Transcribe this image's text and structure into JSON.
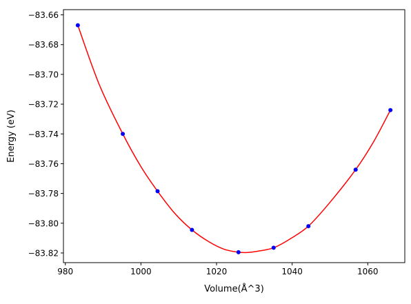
{
  "chart_data": {
    "type": "scatter",
    "title": "",
    "xlabel": "Volume(Å^3)",
    "ylabel": "Energy (eV)",
    "xlim": [
      979.5,
      1069.8
    ],
    "ylim": [
      -83.8265,
      -83.6565
    ],
    "x_ticks": [
      980,
      1000,
      1020,
      1040,
      1060
    ],
    "y_ticks": [
      -83.66,
      -83.68,
      -83.7,
      -83.72,
      -83.74,
      -83.76,
      -83.78,
      -83.8,
      -83.82
    ],
    "x_tick_labels": [
      "980",
      "1000",
      "1020",
      "1040",
      "1060"
    ],
    "y_tick_labels": [
      "−83.66",
      "−83.68",
      "−83.70",
      "−83.72",
      "−83.74",
      "−83.76",
      "−83.78",
      "−83.80",
      "−83.82"
    ],
    "grid": false,
    "legend": "none",
    "series": [
      {
        "kind": "points",
        "color": "#0000ff",
        "x": [
          983.3,
          995.2,
          1004.4,
          1013.5,
          1025.8,
          1035.1,
          1044.3,
          1056.8,
          1066.0
        ],
        "y": [
          -83.667,
          -83.74,
          -83.7785,
          -83.8045,
          -83.8195,
          -83.8165,
          -83.802,
          -83.764,
          -83.724
        ]
      },
      {
        "kind": "fit-curve",
        "color": "#ff0000",
        "x": [
          983.3,
          989.0,
          995.2,
          1000.0,
          1004.4,
          1009.0,
          1013.5,
          1018.0,
          1022.0,
          1025.8,
          1028.0,
          1031.0,
          1035.1,
          1039.5,
          1044.3,
          1050.0,
          1056.8,
          1061.5,
          1066.0
        ],
        "y": [
          -83.667,
          -83.707,
          -83.74,
          -83.762,
          -83.7785,
          -83.7935,
          -83.8045,
          -83.8125,
          -83.8175,
          -83.8195,
          -83.8197,
          -83.8188,
          -83.8165,
          -83.8105,
          -83.802,
          -83.786,
          -83.764,
          -83.7455,
          -83.724
        ]
      }
    ]
  }
}
